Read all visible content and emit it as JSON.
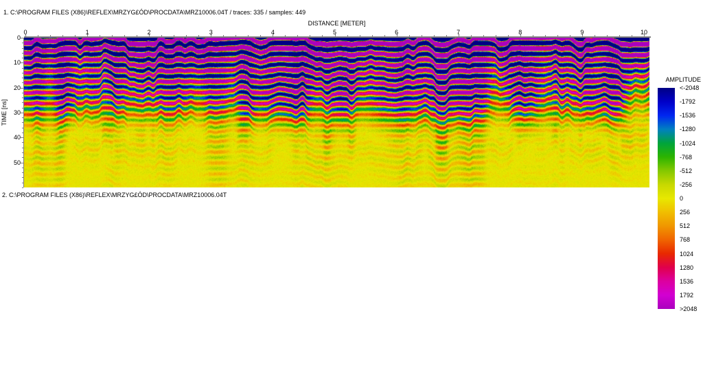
{
  "sections": [
    {
      "title": "1. C:\\PROGRAM FILES (X86)\\REFLEX\\MRZYG£ÓD\\PROCDATA\\MRZ10006.04T / traces: 335 / samples: 449"
    },
    {
      "title": "2. C:\\PROGRAM FILES (X86)\\REFLEX\\MRZYG£ÓD\\PROCDATA\\MRZ10006.04T"
    }
  ],
  "plot": {
    "x_axis": {
      "label": "DISTANCE [METER]",
      "ticks": [
        0,
        1,
        2,
        3,
        4,
        5,
        6,
        7,
        8,
        9,
        10
      ],
      "minor_per_major": 5
    },
    "y_axis": {
      "label": "TIME [ns]",
      "ticks": [
        0,
        10,
        20,
        30,
        40,
        50
      ],
      "minor_step_ns": 2,
      "max_ns": 60
    },
    "axis_color": "#7d7d7d",
    "text_color": "#000000"
  },
  "colorbar": {
    "title": "AMPLITUDE",
    "labels": [
      "<-2048",
      "-1792",
      "-1536",
      "-1280",
      "-1024",
      "-768",
      "-512",
      "-256",
      "0",
      "256",
      "512",
      "768",
      "1024",
      "1280",
      "1536",
      "1792",
      ">2048"
    ],
    "values": [
      -2048,
      -1792,
      -1536,
      -1280,
      -1024,
      -768,
      -512,
      -256,
      0,
      256,
      512,
      768,
      1024,
      1280,
      1536,
      1792,
      2048
    ],
    "stops": [
      "#000084",
      "#0000c8",
      "#0026f0",
      "#0080c0",
      "#00a43c",
      "#2cb400",
      "#84c800",
      "#c8d800",
      "#e8e800",
      "#f0be00",
      "#f09600",
      "#f06400",
      "#e82800",
      "#e0004c",
      "#dc00a0",
      "#d200d2",
      "#aa00be"
    ]
  },
  "chart_data": {
    "type": "heatmap",
    "title": "GPR radargram MRZ10006.04T",
    "xlabel": "DISTANCE [METER]",
    "ylabel": "TIME [ns]",
    "x_range": [
      0,
      10
    ],
    "y_range": [
      0,
      60
    ],
    "traces": 335,
    "samples": 449,
    "colorbar_title": "AMPLITUDE",
    "amplitude_ticks": [
      -2048,
      -1792,
      -1536,
      -1280,
      -1024,
      -768,
      -512,
      -256,
      0,
      256,
      512,
      768,
      1024,
      1280,
      1536,
      1792,
      2048
    ],
    "palette": [
      "#000084",
      "#0000c8",
      "#0026f0",
      "#0080c0",
      "#00a43c",
      "#2cb400",
      "#84c800",
      "#c8d800",
      "#e8e800",
      "#f0be00",
      "#f09600",
      "#f06400",
      "#e82800",
      "#e0004c",
      "#dc00a0",
      "#d200d2",
      "#aa00be"
    ],
    "zones": [
      {
        "time_ns": "0-15",
        "description": "strong saturated reflections: alternating wavy purple/magenta and navy-blue horizontal bands"
      },
      {
        "time_ns": "15-30",
        "description": "mixed red/magenta/green/blue banding broken by vertical low-amplitude yellow intrusions"
      },
      {
        "time_ns": "30-60",
        "description": "low amplitude: yellow background with faint olive-green and orange speckle and weak wavy streaks"
      }
    ]
  }
}
